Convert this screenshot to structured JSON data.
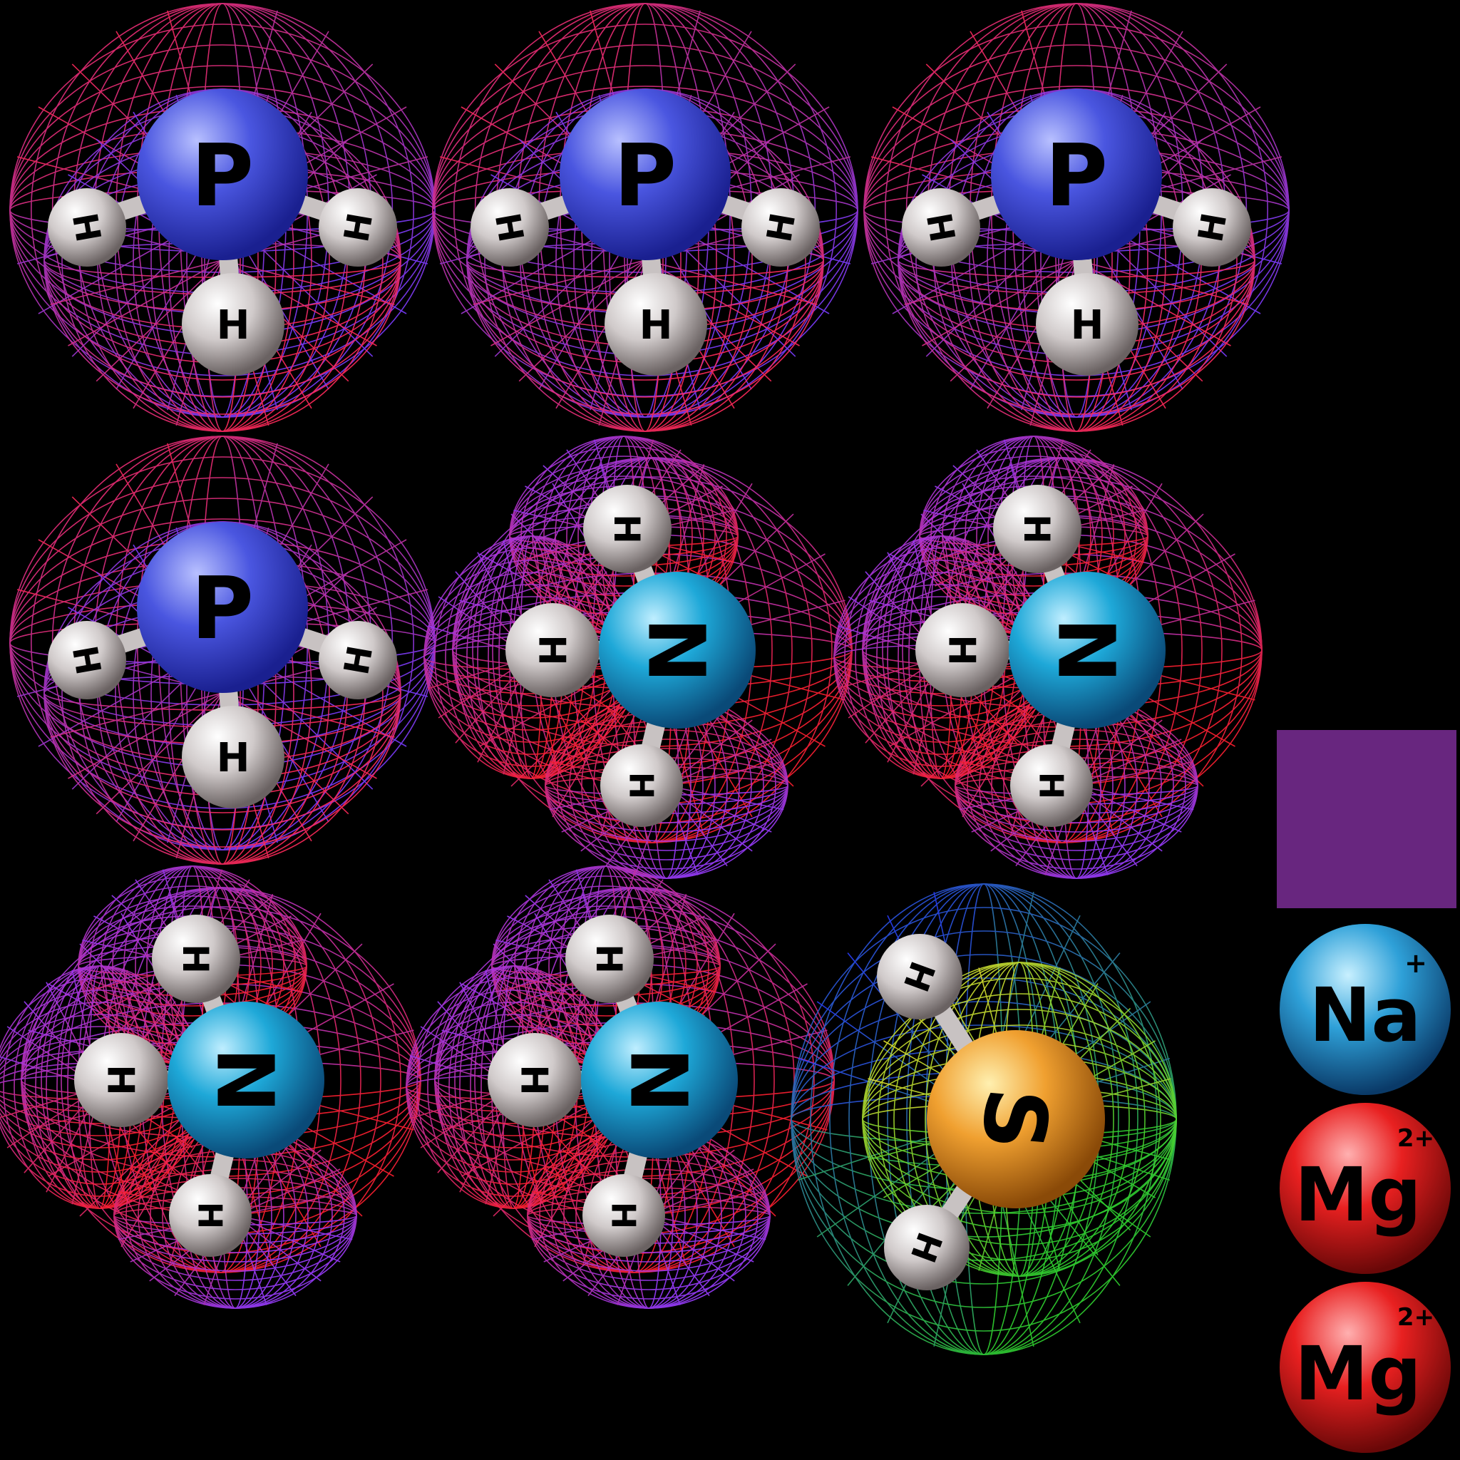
{
  "molecules": [
    {
      "center": "P",
      "hydrogens": [
        "H",
        "H",
        "H"
      ],
      "cloud_colors": [
        "#ff2a5a",
        "#7a3cff"
      ]
    },
    {
      "center": "P",
      "hydrogens": [
        "H",
        "H",
        "H"
      ],
      "cloud_colors": [
        "#ff2a5a",
        "#7a3cff"
      ]
    },
    {
      "center": "P",
      "hydrogens": [
        "H",
        "H",
        "H"
      ],
      "cloud_colors": [
        "#ff2a5a",
        "#7a3cff"
      ]
    },
    {
      "center": "P",
      "hydrogens": [
        "H",
        "H",
        "H"
      ],
      "cloud_colors": [
        "#ff2a5a",
        "#7a3cff"
      ]
    },
    {
      "center": "N",
      "hydrogens": [
        "H",
        "H",
        "H"
      ],
      "cloud_colors": [
        "#ff2030",
        "#9a3cff"
      ]
    },
    {
      "center": "N",
      "hydrogens": [
        "H",
        "H",
        "H"
      ],
      "cloud_colors": [
        "#ff2030",
        "#9a3cff"
      ]
    },
    {
      "center": "N",
      "hydrogens": [
        "H",
        "H",
        "H"
      ],
      "cloud_colors": [
        "#ff2030",
        "#9a3cff"
      ]
    },
    {
      "center": "N",
      "hydrogens": [
        "H",
        "H",
        "H"
      ],
      "cloud_colors": [
        "#ff2030",
        "#9a3cff"
      ]
    },
    {
      "center": "S",
      "hydrogens": [
        "H",
        "H"
      ],
      "cloud_colors": [
        "#2a3cff",
        "#e8e030",
        "#30d030"
      ]
    }
  ],
  "legend": {
    "swatch_color": "#68267f",
    "ions": [
      {
        "symbol": "Na",
        "charge": "+",
        "color": "#2ea0d8"
      },
      {
        "symbol": "Mg",
        "charge": "2+",
        "color": "#e82020"
      },
      {
        "symbol": "Mg",
        "charge": "2+",
        "color": "#e82020"
      }
    ]
  },
  "atom_colors": {
    "P": "#4a56e0",
    "N": "#1ea8d8",
    "S": "#f0a030",
    "H": "#d8d2d2"
  }
}
